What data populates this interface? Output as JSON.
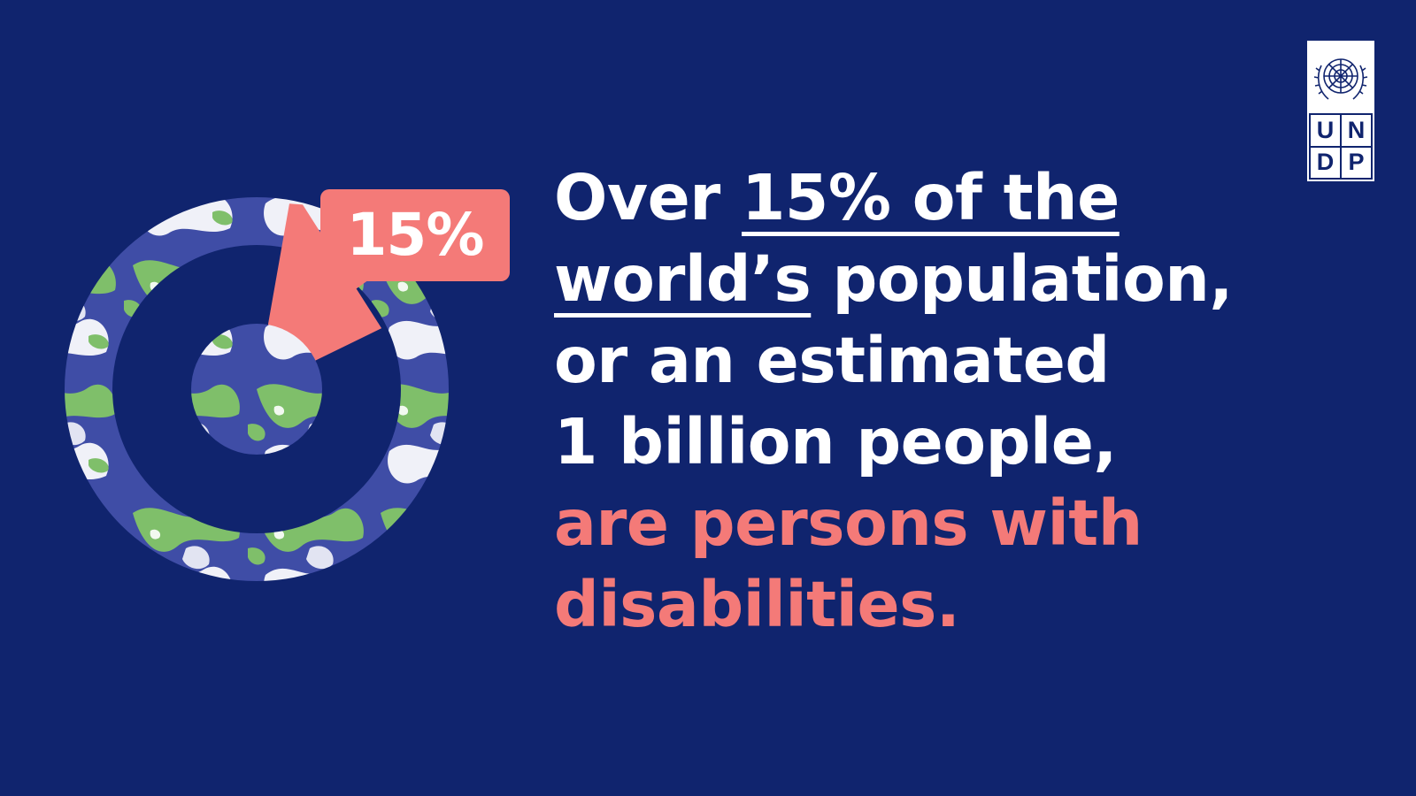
{
  "theme": {
    "background": "#10246e",
    "accent": "#f47a78",
    "text": "#ffffff",
    "globe_ocean": "#3f4da6",
    "globe_land": "#7fbf6a",
    "globe_cloud": "#ffffff"
  },
  "chart_data": {
    "type": "pie",
    "categories": [
      "15%",
      ""
    ],
    "values": [
      15,
      85
    ],
    "data_labels": [
      "15%"
    ],
    "title": "",
    "xlabel": "",
    "ylabel": ""
  },
  "callout": {
    "label": "15%"
  },
  "headline": {
    "line1_a": "Over ",
    "line1_b": "15% of the",
    "line2_a": "world’s",
    "line2_b": " population,",
    "line3": "or an estimated",
    "line4": "1 billion people,",
    "line5": "are persons with",
    "line6": "disabilities."
  },
  "logo": {
    "emblem": "un-emblem-icon",
    "letters": [
      "U",
      "N",
      "D",
      "P"
    ]
  }
}
